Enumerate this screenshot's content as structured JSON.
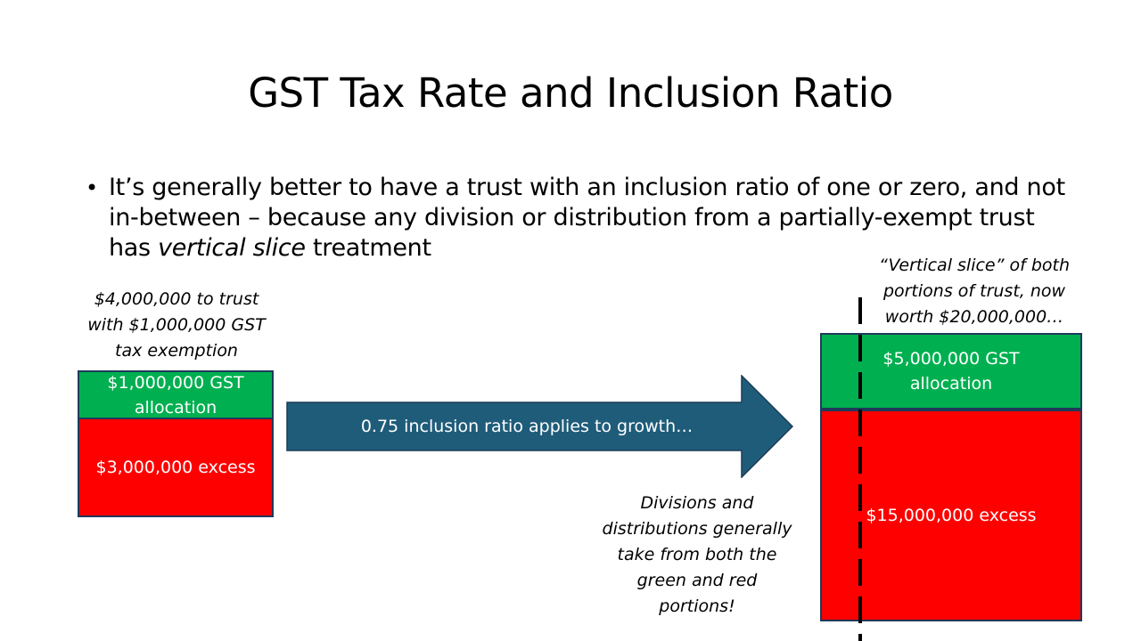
{
  "slide": {
    "title": "GST Tax Rate and Inclusion Ratio",
    "bullet": {
      "marker": "•",
      "text_before": "It’s generally better to have a trust with an inclusion ratio of one or zero, and not in-between – because any division or distribution from a partially-exempt trust has ",
      "emphasis": "vertical slice",
      "text_after": " treatment"
    }
  },
  "left_trust": {
    "caption_lines": [
      "$4,000,000 to trust",
      "with $1,000,000 GST",
      "tax exemption"
    ],
    "green_box_lines": [
      "$1,000,000 GST",
      "allocation"
    ],
    "red_box_label": "$3,000,000 excess"
  },
  "arrow": {
    "label": "0.75 inclusion ratio applies to growth…",
    "color": "#1f5c7a"
  },
  "right_trust": {
    "caption_lines": [
      "“Vertical slice” of both",
      "portions of trust, now",
      "worth $20,000,000…"
    ],
    "green_box_lines": [
      "$5,000,000 GST",
      "allocation"
    ],
    "red_box_label": "$15,000,000 excess"
  },
  "bottom_note": {
    "lines": [
      "Divisions and",
      "distributions generally",
      "take from both the",
      "green and red",
      "portions!"
    ]
  },
  "colors": {
    "exempt_green": "#00b050",
    "excess_red": "#ff0000",
    "box_border": "#1f3a5a"
  }
}
